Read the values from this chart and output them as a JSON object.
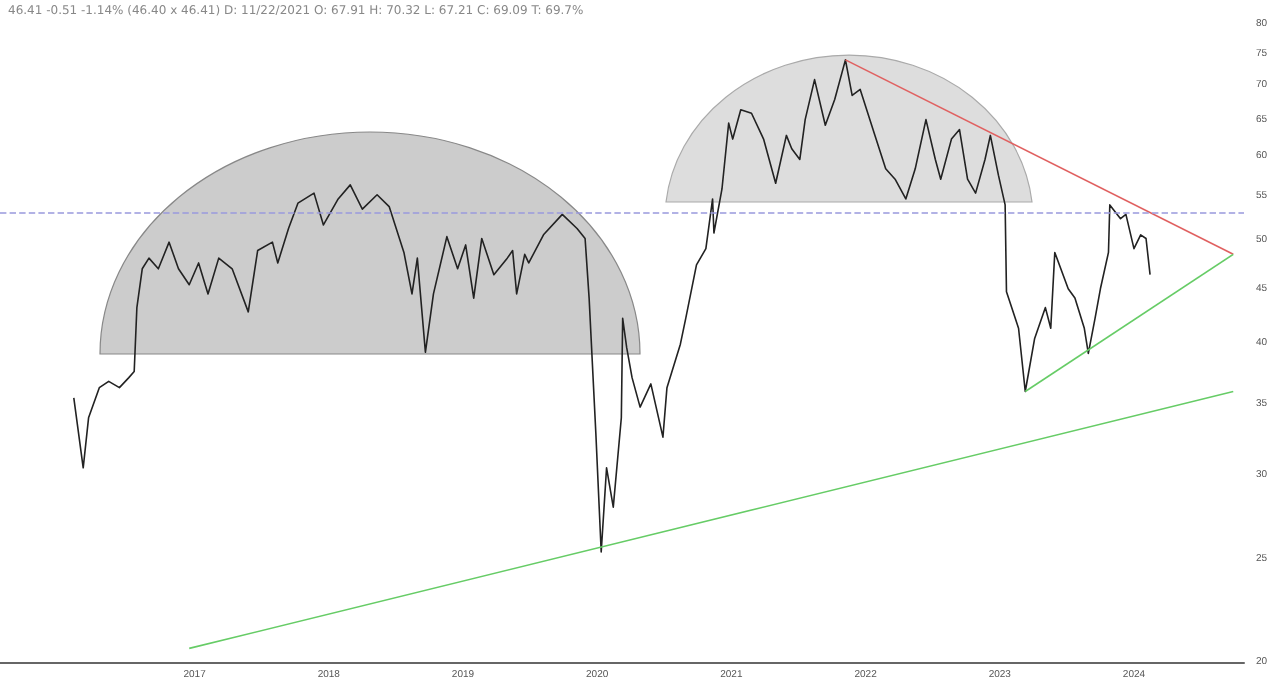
{
  "chart_data": {
    "type": "line",
    "annotations": [
      "46.41 -0.51 -1.14% (46.40 x 46.41) D: 11/22/2021 O: 67.91 H: 70.32 L: 67.21 C: 69.09 T: 69.7%"
    ],
    "log": "y",
    "grid": false,
    "marker": "none",
    "xlim": [
      2015.55,
      2024.82
    ],
    "xticks": [
      2017,
      2018,
      2019,
      2020,
      2021,
      2022,
      2023,
      2024
    ],
    "ylim": [
      20,
      80
    ],
    "yticks": [
      20,
      25,
      30,
      35,
      40,
      45,
      50,
      55,
      60,
      65,
      70,
      75,
      80
    ],
    "ref_lines": [
      {
        "axis": "y",
        "value": 53,
        "color": "#9999dd",
        "line_style": "dashed"
      }
    ],
    "series": [
      {
        "color": "#222222",
        "x": [
          2016.1,
          2016.17,
          2016.21,
          2016.29,
          2016.36,
          2016.44,
          2016.51,
          2016.55,
          2016.57,
          2016.61,
          2016.66,
          2016.73,
          2016.81,
          2016.88,
          2016.96,
          2017.03,
          2017.1,
          2017.18,
          2017.28,
          2017.4,
          2017.47,
          2017.58,
          2017.62,
          2017.7,
          2017.77,
          2017.89,
          2017.96,
          2018.07,
          2018.16,
          2018.25,
          2018.36,
          2018.45,
          2018.56,
          2018.62,
          2018.66,
          2018.72,
          2018.78,
          2018.88,
          2018.96,
          2019.02,
          2019.08,
          2019.14,
          2019.23,
          2019.33,
          2019.37,
          2019.4,
          2019.46,
          2019.49,
          2019.6,
          2019.74,
          2019.85,
          2019.91,
          2019.94,
          2019.99,
          2020.03,
          2020.07,
          2020.12,
          2020.18,
          2020.19,
          2020.22,
          2020.26,
          2020.32,
          2020.4,
          2020.49,
          2020.52,
          2020.62,
          2020.66,
          2020.74,
          2020.81,
          2020.86,
          2020.87,
          2020.93,
          2020.98,
          2021.01,
          2021.07,
          2021.15,
          2021.24,
          2021.33,
          2021.41,
          2021.45,
          2021.51,
          2021.55,
          2021.62,
          2021.7,
          2021.77,
          2021.85,
          2021.9,
          2021.96,
          2022.07,
          2022.15,
          2022.22,
          2022.3,
          2022.37,
          2022.45,
          2022.52,
          2022.56,
          2022.64,
          2022.7,
          2022.76,
          2022.82,
          2022.89,
          2022.93,
          2022.99,
          2023.04,
          2023.05,
          2023.14,
          2023.19,
          2023.26,
          2023.34,
          2023.38,
          2023.41,
          2023.51,
          2023.56,
          2023.63,
          2023.66,
          2023.71,
          2023.75,
          2023.81,
          2023.82,
          2023.9,
          2023.94,
          2024.0,
          2024.05,
          2024.09,
          2024.12
        ],
        "values": [
          35.5,
          30.5,
          34.0,
          36.3,
          36.8,
          36.3,
          37.1,
          37.6,
          43.2,
          47.0,
          48.1,
          47.0,
          49.8,
          47.0,
          45.4,
          47.6,
          44.5,
          48.1,
          47.0,
          42.8,
          48.9,
          49.8,
          47.6,
          51.3,
          54.2,
          55.4,
          51.7,
          54.7,
          56.4,
          53.5,
          55.2,
          53.8,
          48.7,
          44.5,
          48.1,
          39.2,
          44.5,
          50.4,
          47.0,
          49.5,
          44.1,
          50.2,
          46.4,
          48.1,
          48.9,
          44.5,
          48.5,
          47.6,
          50.6,
          52.9,
          51.3,
          50.2,
          44.1,
          32.9,
          25.4,
          30.5,
          28.0,
          34.0,
          42.2,
          39.6,
          37.1,
          34.8,
          36.6,
          32.6,
          36.3,
          39.9,
          42.2,
          47.4,
          49.1,
          54.7,
          50.8,
          55.9,
          64.5,
          62.3,
          66.4,
          65.9,
          62.3,
          56.6,
          62.8,
          61.0,
          59.6,
          65.0,
          70.9,
          64.2,
          67.9,
          74.0,
          68.5,
          69.4,
          62.8,
          58.4,
          57.1,
          54.7,
          58.4,
          65.0,
          59.6,
          57.1,
          62.3,
          63.6,
          57.1,
          55.4,
          59.6,
          62.8,
          57.6,
          54.0,
          44.7,
          41.3,
          36.0,
          40.4,
          43.2,
          41.3,
          48.7,
          45.0,
          44.1,
          41.3,
          39.1,
          42.2,
          45.0,
          48.7,
          54.0,
          52.4,
          52.9,
          49.1,
          50.6,
          50.2,
          46.4
        ]
      },
      {
        "color": "#e06060",
        "x": [
          2021.85,
          2024.74
        ],
        "values": [
          74.0,
          48.5
        ]
      },
      {
        "color": "#66cc66",
        "x": [
          2023.19,
          2024.74
        ],
        "values": [
          36.0,
          48.5
        ]
      },
      {
        "color": "#66cc66",
        "x": [
          2016.96,
          2024.74
        ],
        "values": [
          20.6,
          36.0
        ]
      }
    ]
  }
}
